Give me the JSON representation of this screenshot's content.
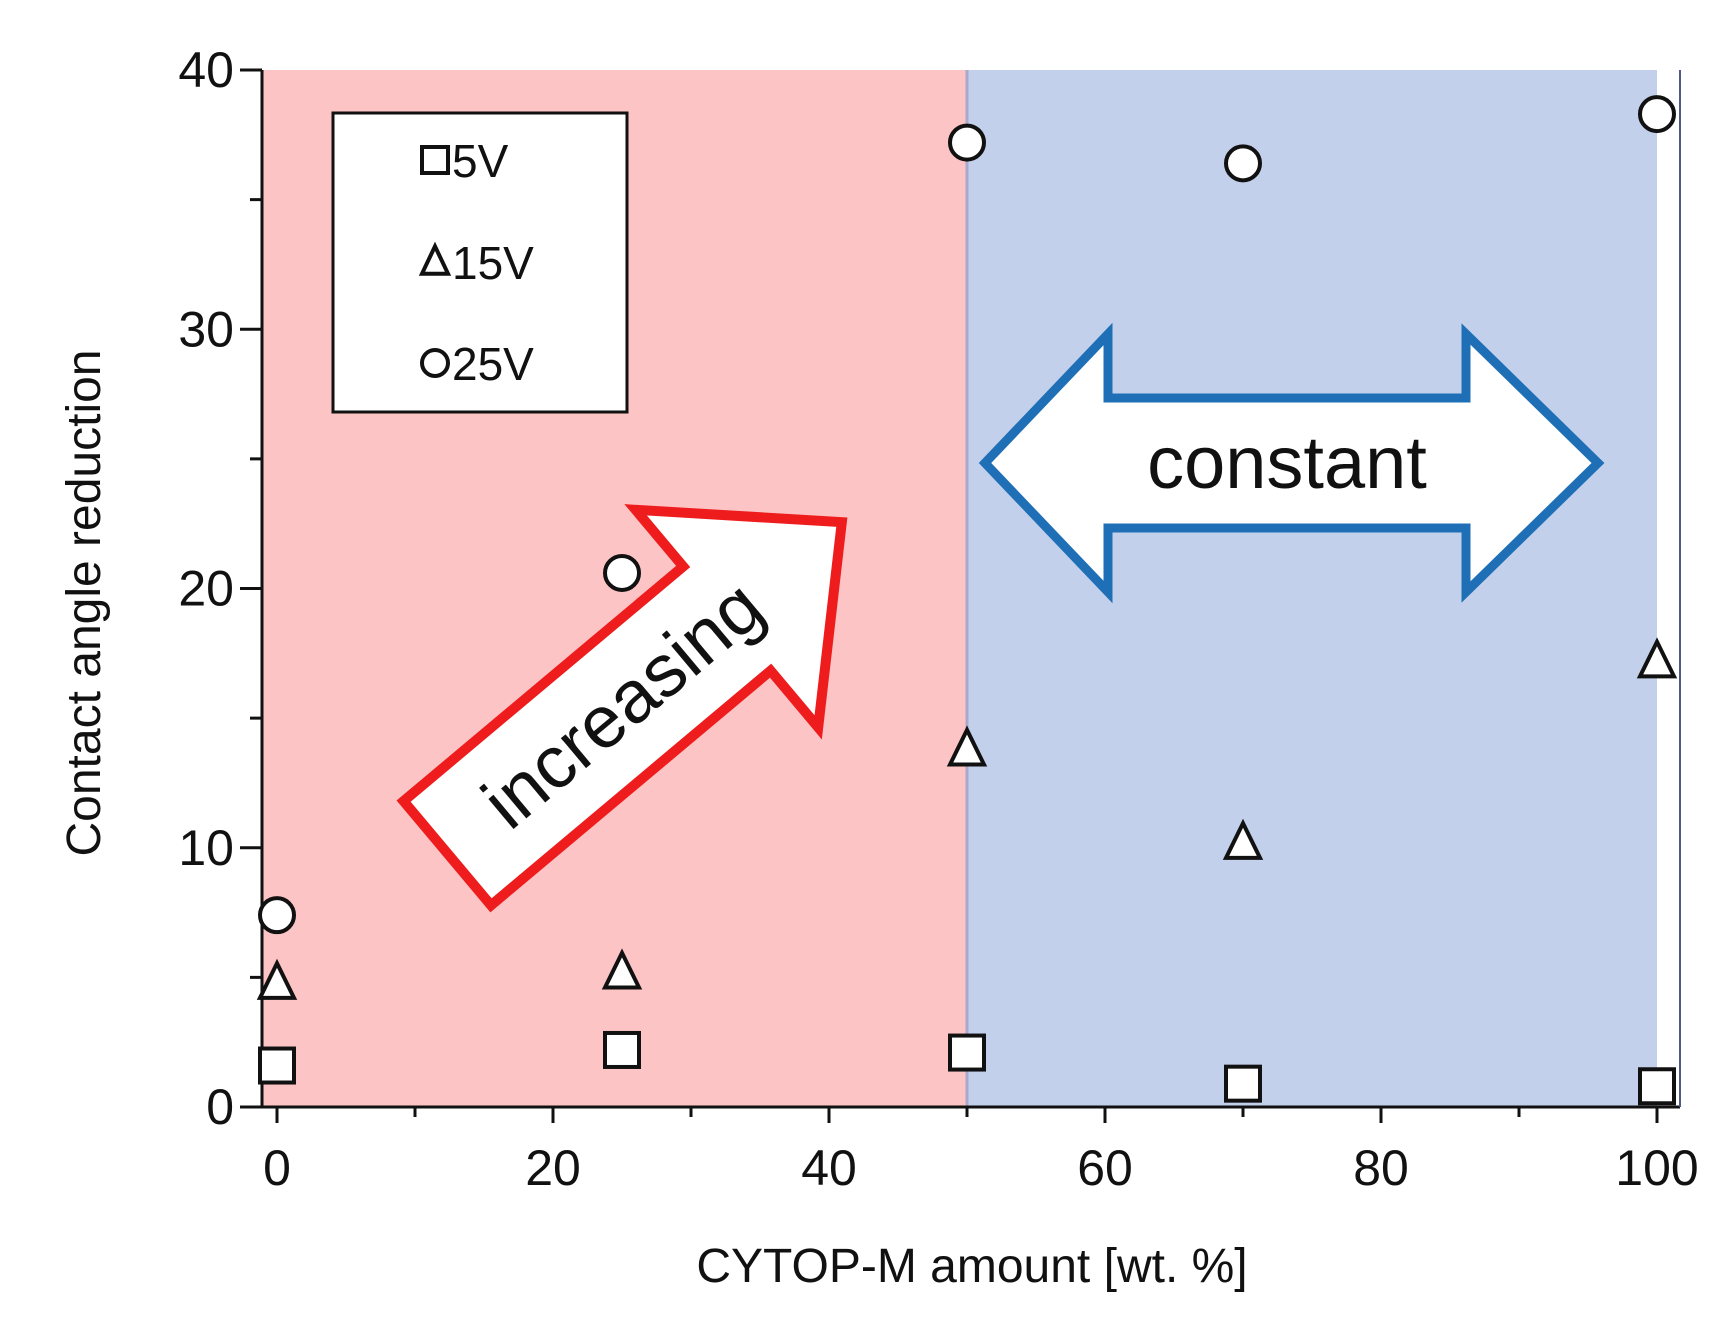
{
  "chart_data": {
    "type": "scatter",
    "title": "",
    "xlabel": "CYTOP-M amount [wt. %]",
    "ylabel": "Contact angle reduction",
    "xlim": [
      0,
      100
    ],
    "ylim": [
      0,
      40
    ],
    "xticks": [
      0,
      20,
      40,
      60,
      80,
      100
    ],
    "yticks": [
      0,
      10,
      20,
      30,
      40
    ],
    "grid": false,
    "legend_position": "top-left",
    "series": [
      {
        "name": "5V",
        "marker": "square",
        "x": [
          0,
          25,
          50,
          70,
          100
        ],
        "y": [
          1.6,
          2.2,
          2.1,
          0.9,
          0.8
        ]
      },
      {
        "name": "15V",
        "marker": "triangle",
        "x": [
          0,
          25,
          50,
          70,
          100
        ],
        "y": [
          4.8,
          5.2,
          13.8,
          10.2,
          17.2
        ]
      },
      {
        "name": "25V",
        "marker": "circle",
        "x": [
          0,
          25,
          50,
          70,
          100
        ],
        "y": [
          7.4,
          20.6,
          37.2,
          36.4,
          38.3
        ]
      }
    ],
    "regions": [
      {
        "x": [
          0,
          50
        ],
        "color": "#fcc4c4"
      },
      {
        "x": [
          50,
          100
        ],
        "color": "#c2d0ec"
      }
    ],
    "annotations": [
      {
        "text": "increasing",
        "arrow_color": "#ee1c1c"
      },
      {
        "text": "constant",
        "arrow_color": "#1f6fb6"
      }
    ]
  }
}
